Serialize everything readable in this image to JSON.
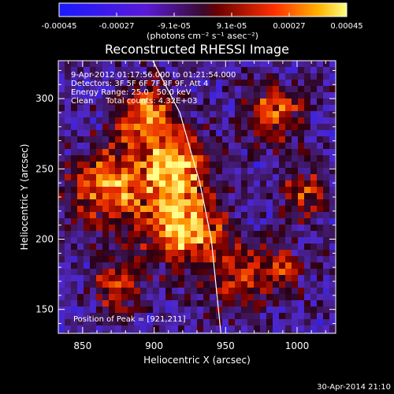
{
  "chart_data": {
    "type": "heatmap",
    "title": "Reconstructed RHESSI Image",
    "xlabel": "Heliocentric X (arcsec)",
    "ylabel": "Heliocentric Y (arcsec)",
    "xlim": [
      833,
      1027
    ],
    "ylim": [
      133,
      327
    ],
    "xticks": [
      850,
      900,
      950,
      1000
    ],
    "yticks": [
      150,
      200,
      250,
      300
    ],
    "colorbar": {
      "ticks": [
        "-0.00045",
        "-0.00027",
        "-9.1e-05",
        "9.1e-05",
        "0.00027",
        "0.00045"
      ],
      "range": [
        -0.00045,
        0.00045
      ],
      "unit_label": "(photons cm⁻² s⁻¹ asec⁻²)"
    },
    "annotations": [
      "9-Apr-2012 01:17:56.000 to 01:21:54.000",
      "Detectors: 3F 5F 6F 7F 8F 9F, Att 4",
      "Energy Range: 25.0 - 50.0 keV",
      "Clean     Total counts: 4.32E+03"
    ],
    "peak_label": "Position of Peak = [921,211]",
    "peak": [
      921,
      211
    ],
    "limb_arc": [
      [
        897,
        331
      ],
      [
        918,
        290
      ],
      [
        932,
        240
      ],
      [
        940,
        200
      ],
      [
        947,
        130
      ]
    ],
    "grid": false
  },
  "footer": {
    "timestamp": "30-Apr-2014 21:10"
  }
}
